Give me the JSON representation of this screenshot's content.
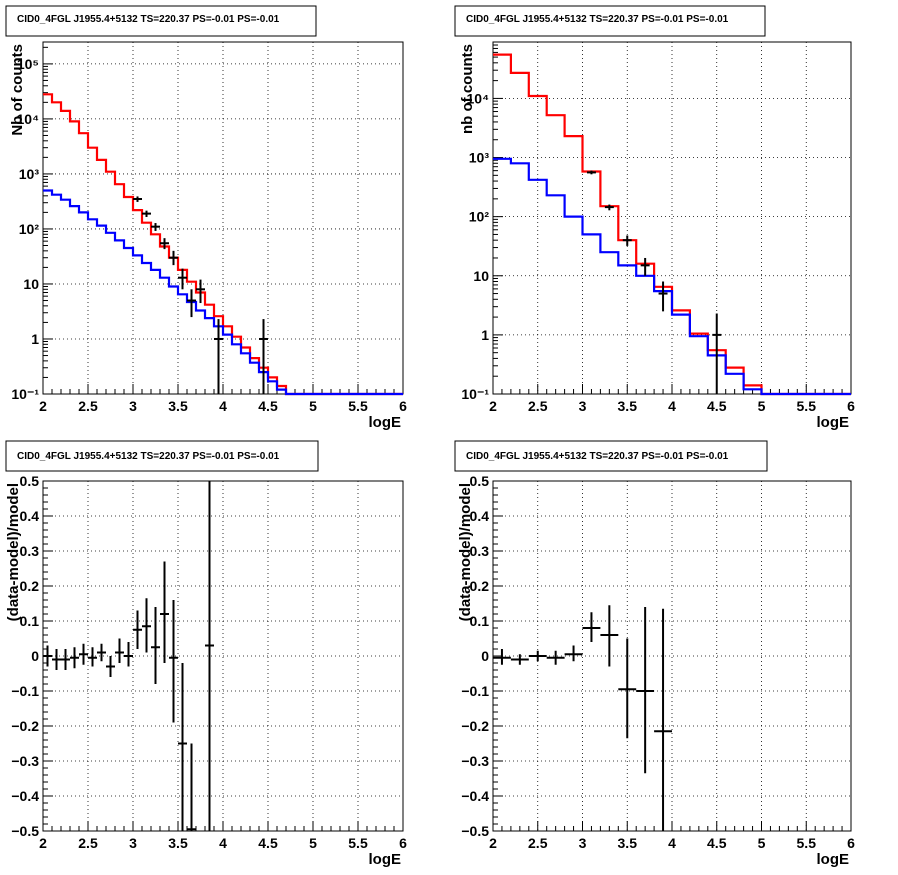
{
  "chart_data": [
    {
      "type": "line",
      "title": "CID0_4FGL J1955.4+5132 TS=220.37 PS=-0.01 PS=-0.01",
      "xlabel": "logE",
      "ylabel": "Nb of counts",
      "xlim": [
        2,
        6
      ],
      "ylim": [
        0.1,
        250000
      ],
      "log_y": true,
      "grid": true,
      "x_ticks": [
        2,
        2.5,
        3,
        3.5,
        4,
        4.5,
        5,
        5.5,
        6
      ],
      "x_tick_labels": [
        "2",
        "2.5",
        "3",
        "3.5",
        "4",
        "4.5",
        "5",
        "5.5",
        "6"
      ],
      "y_ticks": [
        0.1,
        1,
        10,
        100,
        1000,
        10000,
        100000
      ],
      "y_tick_labels": [
        "10⁻¹",
        "1",
        "10",
        "10²",
        "10³",
        "10⁴",
        "10⁵"
      ],
      "bin_edges": [
        2.0,
        2.1,
        2.2,
        2.3,
        2.4,
        2.5,
        2.6,
        2.7,
        2.8,
        2.9,
        3.0,
        3.1,
        3.2,
        3.3,
        3.4,
        3.5,
        3.6,
        3.7,
        3.8,
        3.9,
        4.0,
        4.1,
        4.2,
        4.3,
        4.4,
        4.5,
        4.6,
        4.7,
        4.8,
        4.9,
        5.0,
        5.1,
        5.2,
        5.3,
        5.4,
        5.5,
        5.6,
        5.7,
        5.8,
        5.9,
        6.0
      ],
      "series": [
        {
          "color": "#ff0000",
          "values": [
            28000,
            20000,
            14000,
            9000,
            5500,
            3000,
            1800,
            1100,
            650,
            380,
            220,
            130,
            80,
            48,
            30,
            18,
            11,
            7,
            4.2,
            2.6,
            1.7,
            1.1,
            0.7,
            0.45,
            0.3,
            0.2,
            0.14,
            0.1,
            0.1,
            0.1,
            0.1,
            0.1,
            0.1,
            0.1,
            0.1,
            0.1,
            0.1,
            0.1,
            0.1,
            0.1
          ]
        },
        {
          "color": "#0000ff",
          "values": [
            500,
            420,
            340,
            260,
            200,
            150,
            115,
            85,
            62,
            45,
            33,
            24,
            18,
            13,
            9,
            6.5,
            4.7,
            3.3,
            2.4,
            1.7,
            1.2,
            0.8,
            0.55,
            0.37,
            0.25,
            0.17,
            0.12,
            0.1,
            0.1,
            0.1,
            0.1,
            0.1,
            0.1,
            0.1,
            0.1,
            0.1,
            0.1,
            0.1,
            0.1,
            0.1
          ]
        }
      ],
      "points": [
        {
          "x": 3.05,
          "y": 350,
          "lo": 310,
          "hi": 390
        },
        {
          "x": 3.15,
          "y": 190,
          "lo": 165,
          "hi": 215
        },
        {
          "x": 3.25,
          "y": 110,
          "lo": 92,
          "hi": 128
        },
        {
          "x": 3.35,
          "y": 55,
          "lo": 43,
          "hi": 68
        },
        {
          "x": 3.45,
          "y": 30,
          "lo": 22,
          "hi": 40
        },
        {
          "x": 3.55,
          "y": 13,
          "lo": 8,
          "hi": 19
        },
        {
          "x": 3.65,
          "y": 5,
          "lo": 2.5,
          "hi": 8
        },
        {
          "x": 3.75,
          "y": 8,
          "lo": 4.5,
          "hi": 12
        },
        {
          "x": 3.95,
          "y": 1,
          "lo": 0.1,
          "hi": 2.3
        },
        {
          "x": 4.45,
          "y": 1,
          "lo": 0.1,
          "hi": 2.3
        }
      ]
    },
    {
      "type": "line",
      "title": "CID0_4FGL J1955.4+5132 TS=220.37 PS=-0.01 PS=-0.01",
      "xlabel": "logE",
      "ylabel": "nb of counts",
      "xlim": [
        2,
        6
      ],
      "ylim": [
        0.1,
        90000
      ],
      "log_y": true,
      "grid": true,
      "x_ticks": [
        2,
        2.5,
        3,
        3.5,
        4,
        4.5,
        5,
        5.5,
        6
      ],
      "x_tick_labels": [
        "2",
        "2.5",
        "3",
        "3.5",
        "4",
        "4.5",
        "5",
        "5.5",
        "6"
      ],
      "y_ticks": [
        0.1,
        1,
        10,
        100,
        1000,
        10000
      ],
      "y_tick_labels": [
        "10⁻¹",
        "1",
        "10",
        "10²",
        "10³",
        "10⁴"
      ],
      "bin_edges": [
        2.0,
        2.2,
        2.4,
        2.6,
        2.8,
        3.0,
        3.2,
        3.4,
        3.6,
        3.8,
        4.0,
        4.2,
        4.4,
        4.6,
        4.8,
        5.0,
        5.2,
        5.4,
        5.6,
        5.8,
        6.0
      ],
      "series": [
        {
          "color": "#ff0000",
          "values": [
            55000,
            27000,
            11000,
            5200,
            2300,
            580,
            150,
            40,
            16,
            6.5,
            2.6,
            1.05,
            0.55,
            0.28,
            0.14,
            0.1,
            0.1,
            0.1,
            0.1,
            0.1
          ]
        },
        {
          "color": "#0000ff",
          "values": [
            950,
            800,
            420,
            230,
            100,
            50,
            25,
            15,
            10,
            5.5,
            2.2,
            0.95,
            0.45,
            0.22,
            0.12,
            0.1,
            0.1,
            0.1,
            0.1,
            0.1
          ]
        }
      ],
      "points": [
        {
          "x": 3.1,
          "y": 560,
          "lo": 520,
          "hi": 600
        },
        {
          "x": 3.3,
          "y": 145,
          "lo": 128,
          "hi": 160
        },
        {
          "x": 3.5,
          "y": 40,
          "lo": 32,
          "hi": 48
        },
        {
          "x": 3.7,
          "y": 15,
          "lo": 10,
          "hi": 20
        },
        {
          "x": 3.9,
          "y": 5,
          "lo": 2.5,
          "hi": 8
        },
        {
          "x": 4.5,
          "y": 1,
          "lo": 0.1,
          "hi": 2.3
        }
      ]
    },
    {
      "type": "scatter",
      "title": "CID0_4FGL J1955.4+5132 TS=220.37 PS=-0.01 PS=-0.01",
      "xlabel": "logE",
      "ylabel": "(data-model)/model",
      "xlim": [
        2,
        6
      ],
      "ylim": [
        -0.5,
        0.5
      ],
      "grid": true,
      "x_ticks": [
        2,
        2.5,
        3,
        3.5,
        4,
        4.5,
        5,
        5.5,
        6
      ],
      "x_tick_labels": [
        "2",
        "2.5",
        "3",
        "3.5",
        "4",
        "4.5",
        "5",
        "5.5",
        "6"
      ],
      "y_ticks": [
        -0.5,
        -0.4,
        -0.3,
        -0.2,
        -0.1,
        0,
        0.1,
        0.2,
        0.3,
        0.4,
        0.5
      ],
      "y_tick_labels": [
        "−0.5",
        "−0.4",
        "−0.3",
        "−0.2",
        "−0.1",
        "0",
        "0.1",
        "0.2",
        "0.3",
        "0.4",
        "0.5"
      ],
      "half_width": 0.05,
      "points": [
        {
          "x": 2.05,
          "y": 0.0,
          "lo": -0.03,
          "hi": 0.03
        },
        {
          "x": 2.15,
          "y": -0.01,
          "lo": -0.04,
          "hi": 0.02
        },
        {
          "x": 2.25,
          "y": -0.01,
          "lo": -0.04,
          "hi": 0.02
        },
        {
          "x": 2.35,
          "y": -0.005,
          "lo": -0.035,
          "hi": 0.025
        },
        {
          "x": 2.45,
          "y": 0.005,
          "lo": -0.025,
          "hi": 0.035
        },
        {
          "x": 2.55,
          "y": -0.005,
          "lo": -0.03,
          "hi": 0.025
        },
        {
          "x": 2.65,
          "y": 0.01,
          "lo": -0.015,
          "hi": 0.035
        },
        {
          "x": 2.75,
          "y": -0.03,
          "lo": -0.06,
          "hi": 0.0
        },
        {
          "x": 2.85,
          "y": 0.01,
          "lo": -0.02,
          "hi": 0.05
        },
        {
          "x": 2.95,
          "y": 0.0,
          "lo": -0.03,
          "hi": 0.04
        },
        {
          "x": 3.05,
          "y": 0.075,
          "lo": 0.02,
          "hi": 0.13
        },
        {
          "x": 3.15,
          "y": 0.085,
          "lo": 0.01,
          "hi": 0.165
        },
        {
          "x": 3.25,
          "y": 0.025,
          "lo": -0.08,
          "hi": 0.14
        },
        {
          "x": 3.35,
          "y": 0.12,
          "lo": -0.02,
          "hi": 0.27
        },
        {
          "x": 3.45,
          "y": -0.005,
          "lo": -0.19,
          "hi": 0.16
        },
        {
          "x": 3.55,
          "y": -0.25,
          "lo": -0.5,
          "hi": -0.02
        },
        {
          "x": 3.65,
          "y": -0.495,
          "lo": -0.5,
          "hi": -0.25
        },
        {
          "x": 3.85,
          "y": 0.03,
          "lo": -0.5,
          "hi": 0.5
        }
      ]
    },
    {
      "type": "scatter",
      "title": "CID0_4FGL J1955.4+5132 TS=220.37 PS=-0.01 PS=-0.01",
      "xlabel": "logE",
      "ylabel": "(data-model)/model",
      "xlim": [
        2,
        6
      ],
      "ylim": [
        -0.5,
        0.5
      ],
      "grid": true,
      "x_ticks": [
        2,
        2.5,
        3,
        3.5,
        4,
        4.5,
        5,
        5.5,
        6
      ],
      "x_tick_labels": [
        "2",
        "2.5",
        "3",
        "3.5",
        "4",
        "4.5",
        "5",
        "5.5",
        "6"
      ],
      "y_ticks": [
        -0.5,
        -0.4,
        -0.3,
        -0.2,
        -0.1,
        0,
        0.1,
        0.2,
        0.3,
        0.4,
        0.5
      ],
      "y_tick_labels": [
        "−0.5",
        "−0.4",
        "−0.3",
        "−0.2",
        "−0.1",
        "0",
        "0.1",
        "0.2",
        "0.3",
        "0.4",
        "0.5"
      ],
      "half_width": 0.1,
      "points": [
        {
          "x": 2.1,
          "y": -0.005,
          "lo": -0.025,
          "hi": 0.02
        },
        {
          "x": 2.3,
          "y": -0.01,
          "lo": -0.025,
          "hi": 0.005
        },
        {
          "x": 2.5,
          "y": 0.0,
          "lo": -0.015,
          "hi": 0.015
        },
        {
          "x": 2.7,
          "y": -0.005,
          "lo": -0.025,
          "hi": 0.015
        },
        {
          "x": 2.9,
          "y": 0.005,
          "lo": -0.015,
          "hi": 0.03
        },
        {
          "x": 3.1,
          "y": 0.08,
          "lo": 0.04,
          "hi": 0.125
        },
        {
          "x": 3.3,
          "y": 0.06,
          "lo": -0.03,
          "hi": 0.145
        },
        {
          "x": 3.5,
          "y": -0.095,
          "lo": -0.235,
          "hi": 0.05
        },
        {
          "x": 3.7,
          "y": -0.1,
          "lo": -0.335,
          "hi": 0.14
        },
        {
          "x": 3.9,
          "y": -0.215,
          "lo": -0.5,
          "hi": 0.135
        }
      ]
    }
  ]
}
